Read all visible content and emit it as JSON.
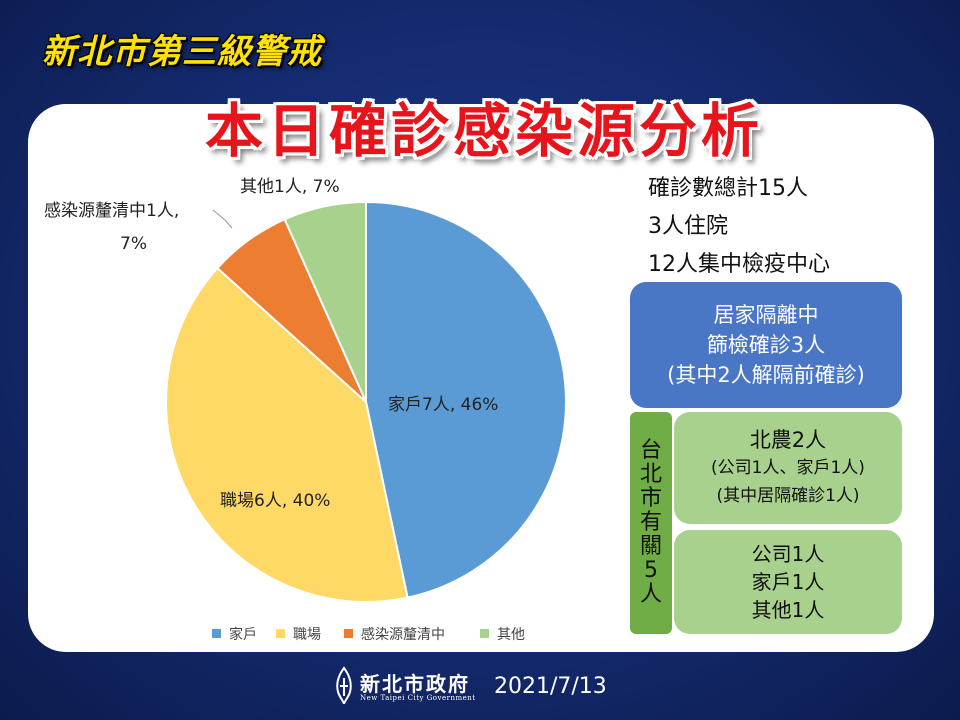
{
  "header": {
    "top_title": "新北市第三級警戒",
    "main_title": "本日確診感染源分析"
  },
  "chart_data": {
    "type": "pie",
    "categories": [
      "家戶",
      "職場",
      "感染源釐清中",
      "其他"
    ],
    "values": [
      7,
      6,
      1,
      1
    ],
    "percent": [
      46,
      40,
      7,
      7
    ],
    "colors": [
      "#5b9bd5",
      "#ffd966",
      "#ed7d31",
      "#a9d18e"
    ],
    "data_labels": [
      "家戶7人, 46%",
      "職場6人, 40%",
      "感染源釐清中1人,",
      "其他1人, 7%"
    ],
    "data_label_second_line": "7%",
    "legend": [
      "家戶",
      "職場",
      "感染源釐清中",
      "其他"
    ],
    "legend_position": "bottom"
  },
  "summary": {
    "line1": "確診數總計15人",
    "line2": "3人住院",
    "line3": "12人集中檢疫中心"
  },
  "boxes": {
    "blue": [
      "居家隔離中",
      "篩檢確診3人",
      "(其中2人解隔前確診)"
    ],
    "taipei_label": [
      "台",
      "北",
      "市",
      "有",
      "關",
      "5",
      "人"
    ],
    "green1": [
      "北農2人",
      "(公司1人、家戶1人)",
      "(其中居隔確診1人)"
    ],
    "green2": [
      "公司1人",
      "家戶1人",
      "其他1人"
    ]
  },
  "footer": {
    "org_name": "新北市政府",
    "org_name_en": "New Taipei City Government",
    "date": "2021/7/13",
    "logo_icon": "new-taipei-logo-icon"
  }
}
